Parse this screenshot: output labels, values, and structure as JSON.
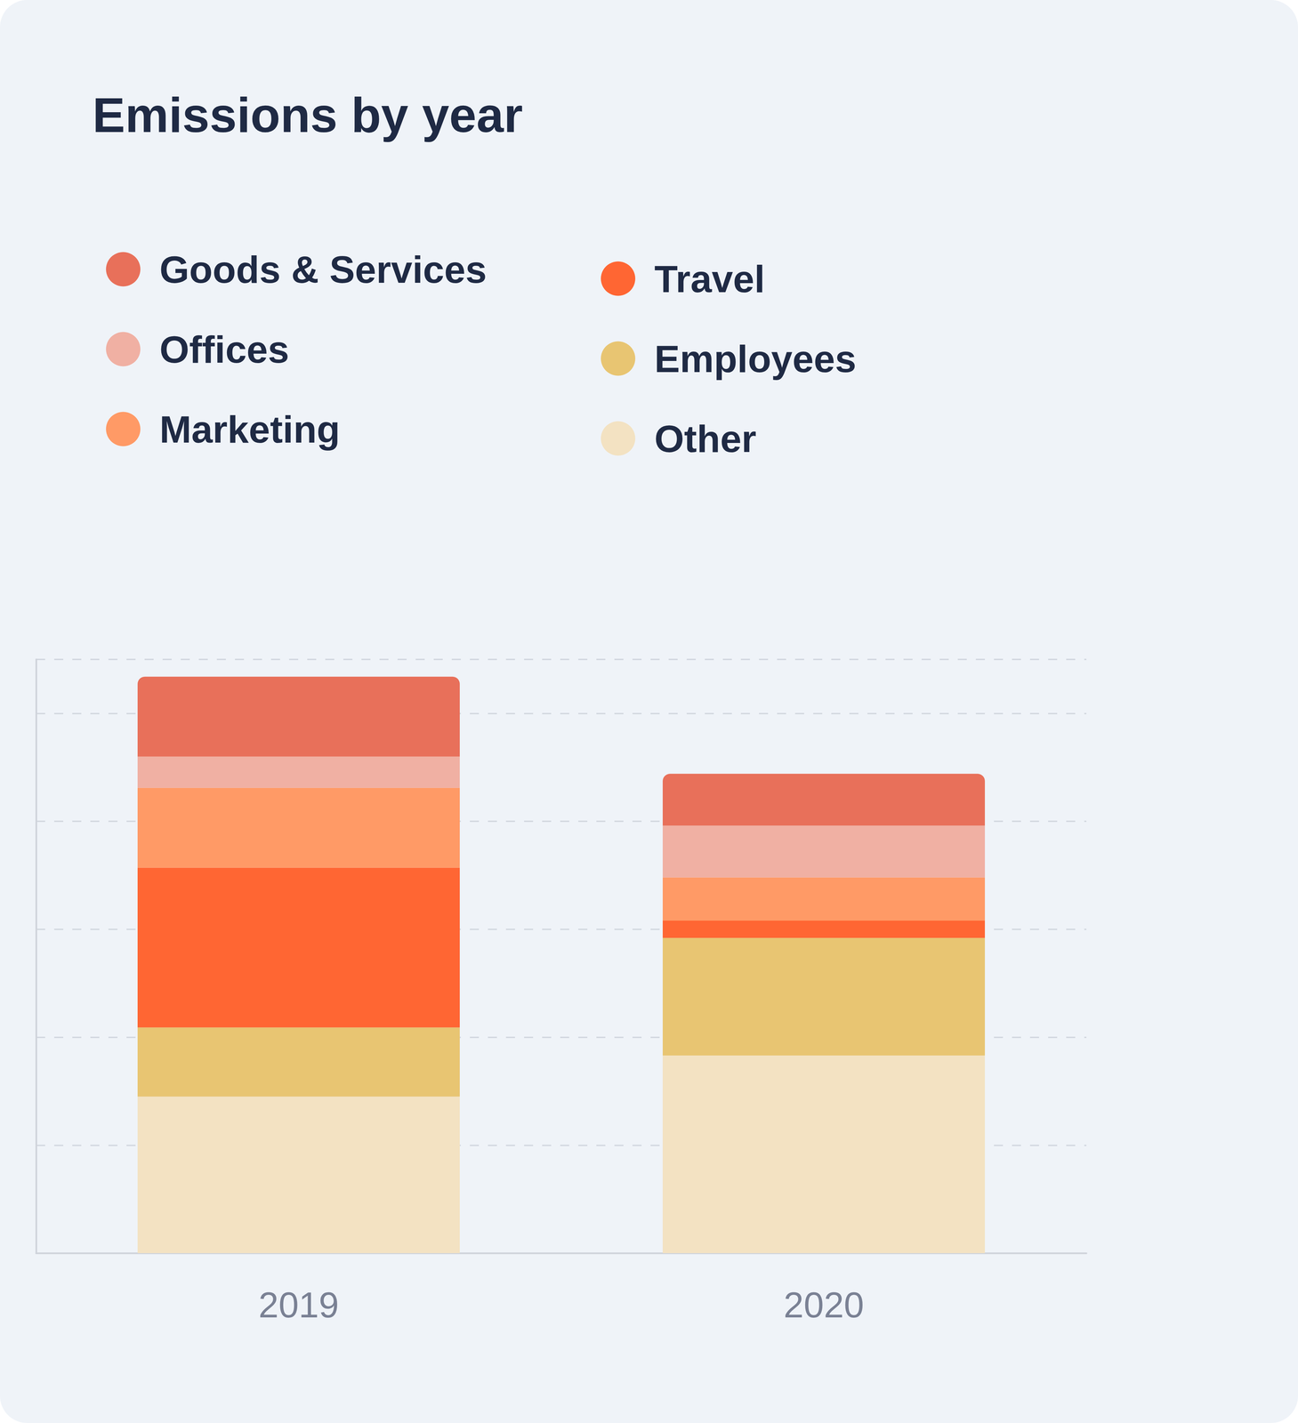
{
  "chart_data": {
    "type": "bar",
    "title": "Emissions by year",
    "categories": [
      "2019",
      "2020"
    ],
    "series": [
      {
        "name": "Goods & Services",
        "color": "#E8705A",
        "values": [
          74,
          48
        ]
      },
      {
        "name": "Offices",
        "color": "#F0B0A3",
        "values": [
          29,
          48
        ]
      },
      {
        "name": "Marketing",
        "color": "#FF9A66",
        "values": [
          74,
          40
        ]
      },
      {
        "name": "Travel",
        "color": "#FF6633",
        "values": [
          148,
          16
        ]
      },
      {
        "name": "Employees",
        "color": "#E8C572",
        "values": [
          64,
          109
        ]
      },
      {
        "name": "Other",
        "color": "#F3E2C2",
        "values": [
          145,
          183
        ]
      }
    ],
    "ylim": [
      0,
      550
    ],
    "yticks": [
      0,
      100,
      200,
      300,
      400,
      500
    ],
    "grid": true,
    "stacked": true,
    "tick_labels": "x",
    "legend": "top-left"
  }
}
